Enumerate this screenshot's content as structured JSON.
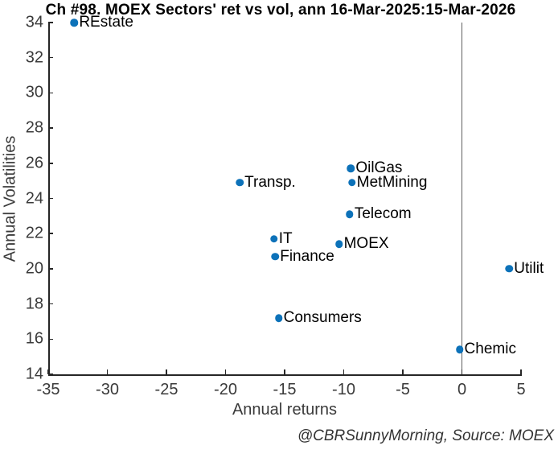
{
  "chart_data": {
    "type": "scatter",
    "title": "Ch #98. MOEX Sectors' ret vs vol, ann 16-Mar-2025:15-Mar-2026",
    "xlabel": "Annual returns",
    "ylabel": "Annual Volatilities",
    "credit": "@CBRSunnyMorning, Source: MOEX",
    "xlim": [
      -35,
      5
    ],
    "ylim": [
      14,
      34
    ],
    "xticks": [
      -35,
      -30,
      -25,
      -20,
      -15,
      -10,
      -5,
      0,
      5
    ],
    "yticks": [
      14,
      16,
      18,
      20,
      22,
      24,
      26,
      28,
      30,
      32,
      34
    ],
    "grid": false,
    "legend": "none",
    "zero_line_x": 0,
    "marker_color": "#0d72b9",
    "axis_color": "#262626",
    "zero_line_color": "#5f5f5f",
    "points": [
      {
        "label": "REstate",
        "x": -32.8,
        "y": 34.0
      },
      {
        "label": "Transp.",
        "x": -18.8,
        "y": 24.9
      },
      {
        "label": "OilGas",
        "x": -9.4,
        "y": 25.7
      },
      {
        "label": "MetMining",
        "x": -9.3,
        "y": 24.9
      },
      {
        "label": "Telecom",
        "x": -9.5,
        "y": 23.1
      },
      {
        "label": "IT",
        "x": -15.9,
        "y": 21.7
      },
      {
        "label": "MOEX",
        "x": -10.4,
        "y": 21.4
      },
      {
        "label": "Finance",
        "x": -15.8,
        "y": 20.7
      },
      {
        "label": "Consumers",
        "x": -15.5,
        "y": 17.2
      },
      {
        "label": "Utilit",
        "x": 4.0,
        "y": 20.0
      },
      {
        "label": "Chemic",
        "x": -0.2,
        "y": 15.4
      }
    ]
  }
}
